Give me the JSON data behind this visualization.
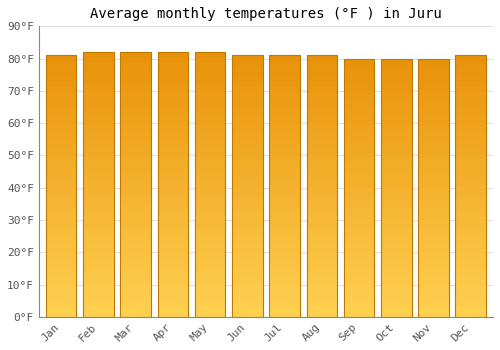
{
  "months": [
    "Jan",
    "Feb",
    "Mar",
    "Apr",
    "May",
    "Jun",
    "Jul",
    "Aug",
    "Sep",
    "Oct",
    "Nov",
    "Dec"
  ],
  "values": [
    81,
    82,
    82,
    82,
    82,
    81,
    81,
    81,
    80,
    80,
    80,
    81
  ],
  "bar_color_top": "#E8920A",
  "bar_color_bottom": "#FFD050",
  "bar_edge_color": "#C07800",
  "title": "Average monthly temperatures (°F ) in Juru",
  "ylim": [
    0,
    90
  ],
  "ytick_step": 10,
  "background_color": "#FFFFFF",
  "plot_bg_color": "#FFFFFF",
  "grid_color": "#DDDDDD",
  "title_fontsize": 10,
  "tick_fontsize": 8,
  "font_family": "monospace"
}
